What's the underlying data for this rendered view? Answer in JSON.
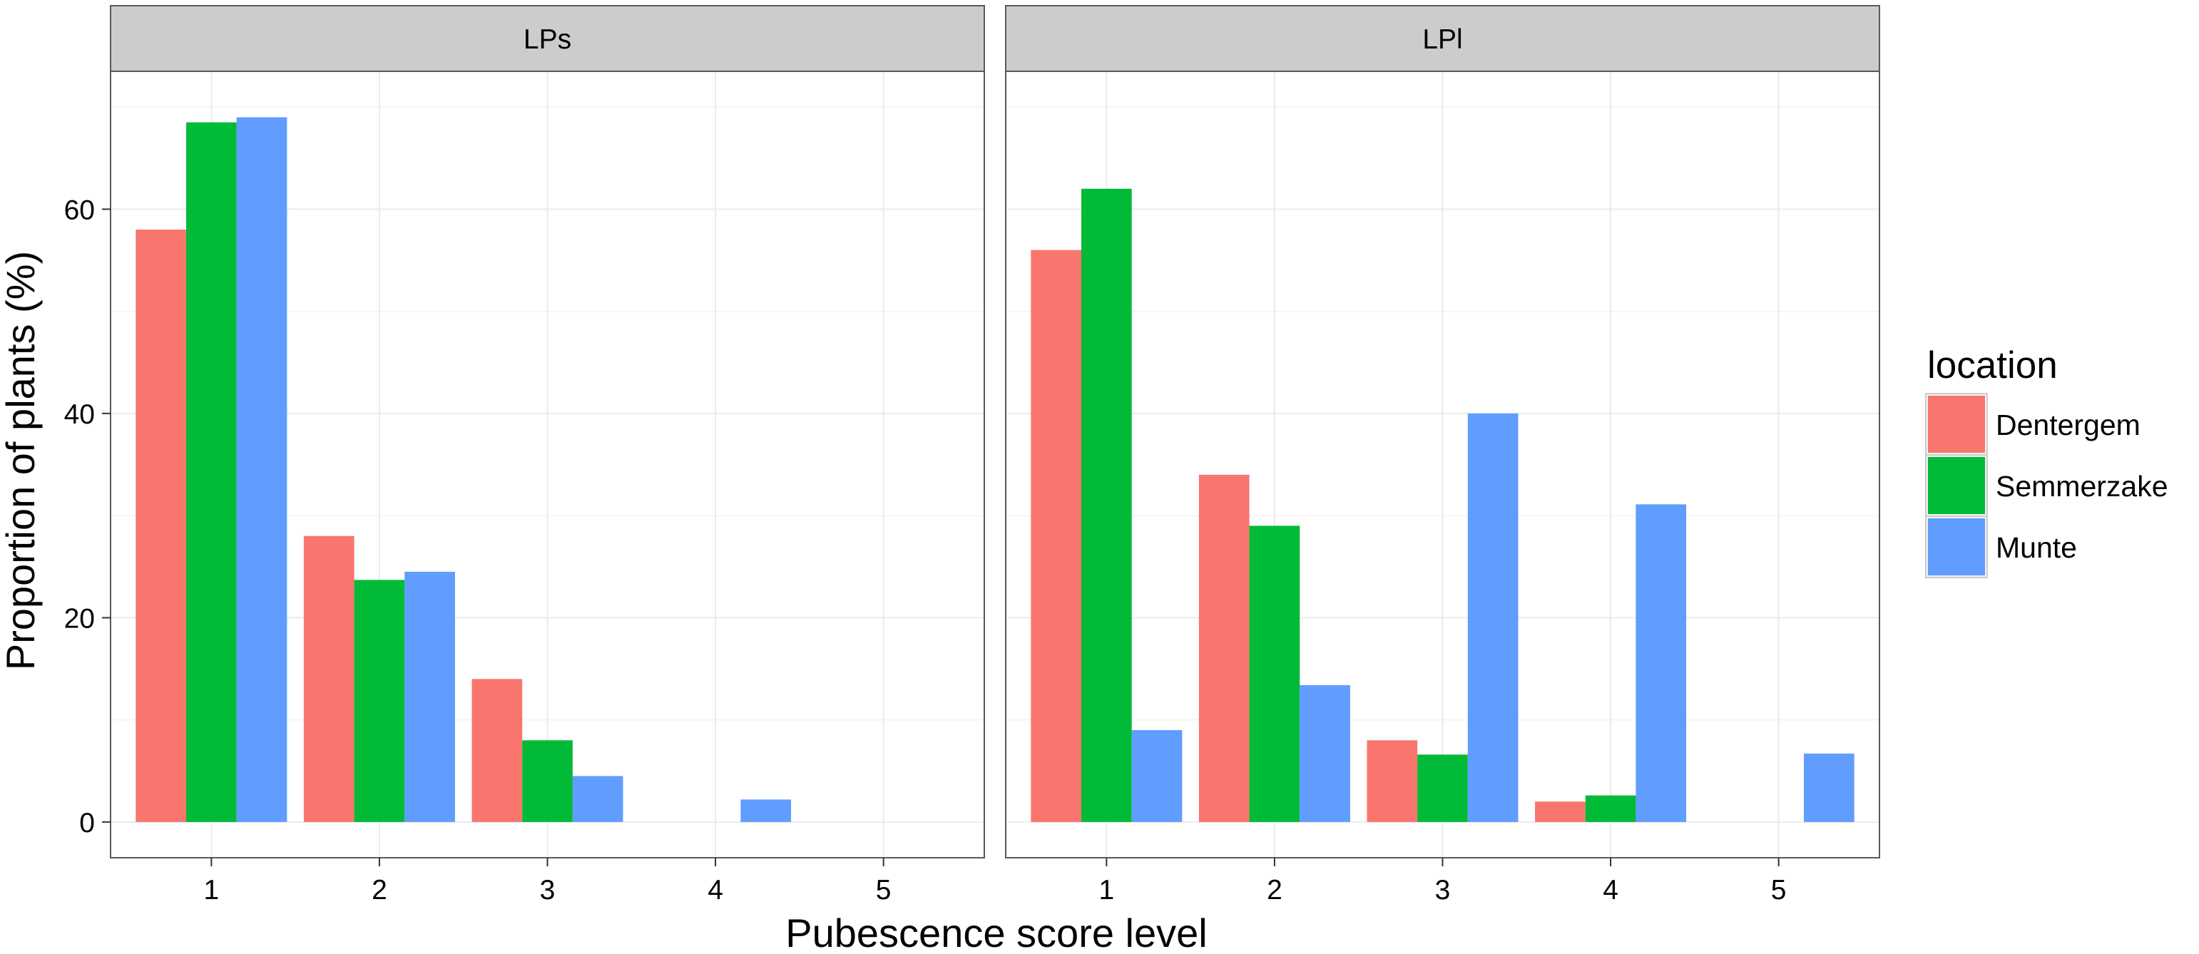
{
  "chart_data": {
    "type": "bar",
    "xlabel": "Pubescence score level",
    "ylabel": "Proportion of plants (%)",
    "categories": [
      "1",
      "2",
      "3",
      "4",
      "5"
    ],
    "y_ticks": [
      "0",
      "20",
      "40",
      "60"
    ],
    "ylim": [
      -3.5,
      73.5
    ],
    "grid": true,
    "legend": {
      "title": "location",
      "position": "right",
      "entries": [
        "Dentergem",
        "Semmerzake",
        "Munte"
      ]
    },
    "series_colors": {
      "Dentergem": "#F8766D",
      "Semmerzake": "#00BA38",
      "Munte": "#619CFF"
    },
    "facets": [
      {
        "label": "LPs",
        "series": [
          {
            "name": "Dentergem",
            "values": [
              58,
              28,
              14,
              0,
              0
            ]
          },
          {
            "name": "Semmerzake",
            "values": [
              68.5,
              23.7,
              8,
              0,
              0
            ]
          },
          {
            "name": "Munte",
            "values": [
              69,
              24.5,
              4.5,
              2.2,
              0
            ]
          }
        ]
      },
      {
        "label": "LPl",
        "series": [
          {
            "name": "Dentergem",
            "values": [
              56,
              34,
              8,
              2,
              0
            ]
          },
          {
            "name": "Semmerzake",
            "values": [
              62,
              29,
              6.6,
              2.6,
              0
            ]
          },
          {
            "name": "Munte",
            "values": [
              9,
              13.4,
              40,
              31.1,
              6.7
            ]
          }
        ]
      }
    ]
  }
}
